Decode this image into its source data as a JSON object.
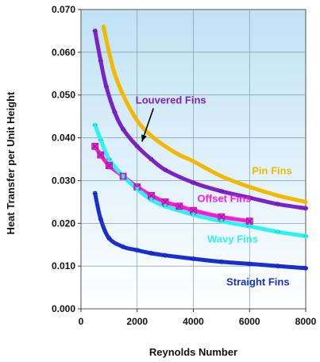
{
  "chart_data": {
    "type": "line",
    "title": "",
    "xlabel": "Reynolds Number",
    "ylabel": "Heat Transfer per Unit Height",
    "xlim": [
      0,
      8000
    ],
    "ylim": [
      0.0,
      0.07
    ],
    "x_ticks": [
      "0",
      "2000",
      "4000",
      "6000",
      "8000"
    ],
    "y_ticks": [
      "0.000",
      "0.010",
      "0.020",
      "0.030",
      "0.040",
      "0.050",
      "0.060",
      "0.070"
    ],
    "grid": true,
    "background": "gradient-light-blue",
    "series": [
      {
        "name": "Pin Fins",
        "color": "#f5b800",
        "marker": "none",
        "points": [
          [
            800,
            0.066
          ],
          [
            1000,
            0.06
          ],
          [
            1200,
            0.055
          ],
          [
            1500,
            0.05
          ],
          [
            2000,
            0.044
          ],
          [
            2500,
            0.0405
          ],
          [
            3000,
            0.038
          ],
          [
            3500,
            0.036
          ],
          [
            4000,
            0.0345
          ],
          [
            5000,
            0.031
          ],
          [
            6000,
            0.0285
          ],
          [
            7000,
            0.0265
          ],
          [
            8000,
            0.025
          ]
        ]
      },
      {
        "name": "Louvered Fins",
        "color": "#7b22c8",
        "marker": "star",
        "points": [
          [
            500,
            0.065
          ],
          [
            700,
            0.058
          ],
          [
            900,
            0.052
          ],
          [
            1200,
            0.046
          ],
          [
            1500,
            0.042
          ],
          [
            2000,
            0.038
          ],
          [
            2500,
            0.035
          ],
          [
            3000,
            0.0325
          ],
          [
            4000,
            0.0295
          ],
          [
            5000,
            0.0275
          ],
          [
            6000,
            0.026
          ],
          [
            7000,
            0.0245
          ],
          [
            8000,
            0.0235
          ]
        ]
      },
      {
        "name": "Offset Fins",
        "color": "#ff1ad9",
        "marker": "x",
        "points": [
          [
            500,
            0.038
          ],
          [
            700,
            0.036
          ],
          [
            1000,
            0.0335
          ],
          [
            1500,
            0.031
          ],
          [
            2000,
            0.0285
          ],
          [
            2500,
            0.0265
          ],
          [
            3000,
            0.025
          ],
          [
            3500,
            0.024
          ],
          [
            4000,
            0.023
          ],
          [
            5000,
            0.0215
          ],
          [
            6000,
            0.0205
          ]
        ]
      },
      {
        "name": "Wavy Fins",
        "color": "#2ef2f2",
        "marker": "star",
        "points": [
          [
            500,
            0.043
          ],
          [
            700,
            0.0395
          ],
          [
            1000,
            0.035
          ],
          [
            1500,
            0.031
          ],
          [
            2000,
            0.028
          ],
          [
            2500,
            0.0255
          ],
          [
            3000,
            0.024
          ],
          [
            4000,
            0.022
          ],
          [
            5000,
            0.0205
          ],
          [
            6000,
            0.0193
          ],
          [
            7000,
            0.018
          ],
          [
            8000,
            0.017
          ]
        ]
      },
      {
        "name": "Straight Fins",
        "color": "#1a2fd1",
        "marker": "star",
        "points": [
          [
            500,
            0.027
          ],
          [
            700,
            0.021
          ],
          [
            1000,
            0.0165
          ],
          [
            1500,
            0.0145
          ],
          [
            2000,
            0.0137
          ],
          [
            2500,
            0.013
          ],
          [
            3000,
            0.0125
          ],
          [
            4000,
            0.0117
          ],
          [
            5000,
            0.011
          ],
          [
            6000,
            0.0105
          ],
          [
            7000,
            0.01
          ],
          [
            8000,
            0.0095
          ]
        ]
      }
    ],
    "annotations": [
      {
        "text": "Louvered Fins",
        "color": "#7b22c8",
        "arrow_to": [
          2000,
          0.038
        ],
        "at": [
          3200,
          0.048
        ]
      },
      {
        "text": "Pin Fins",
        "color": "#f5b800",
        "at": [
          6800,
          0.0315
        ]
      },
      {
        "text": "Offset Fins",
        "color": "#ff1ad9",
        "at": [
          5100,
          0.025
        ]
      },
      {
        "text": "Wavy Fins",
        "color": "#2ef2f2",
        "at": [
          5400,
          0.0155
        ]
      },
      {
        "text": "Straight Fins",
        "color": "#1a2fd1",
        "at": [
          6300,
          0.0055
        ]
      }
    ]
  }
}
